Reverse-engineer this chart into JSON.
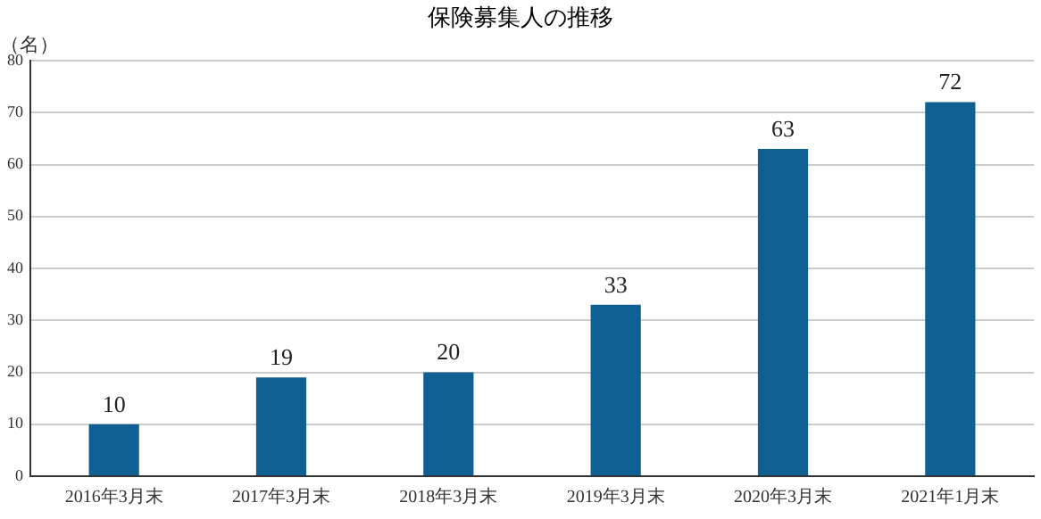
{
  "chart_data": {
    "type": "bar",
    "title": "保険募集人の推移",
    "ylabel": "（名）",
    "categories": [
      "2016年3月末",
      "2017年3月末",
      "2018年3月末",
      "2019年3月末",
      "2020年3月末",
      "2021年1月末"
    ],
    "values": [
      10,
      19,
      20,
      33,
      63,
      72
    ],
    "color": "#0f5f93",
    "ylim": [
      0,
      80
    ],
    "yticks": [
      0,
      10,
      20,
      30,
      40,
      50,
      60,
      70,
      80
    ],
    "grid": "y",
    "data_labels": true
  }
}
